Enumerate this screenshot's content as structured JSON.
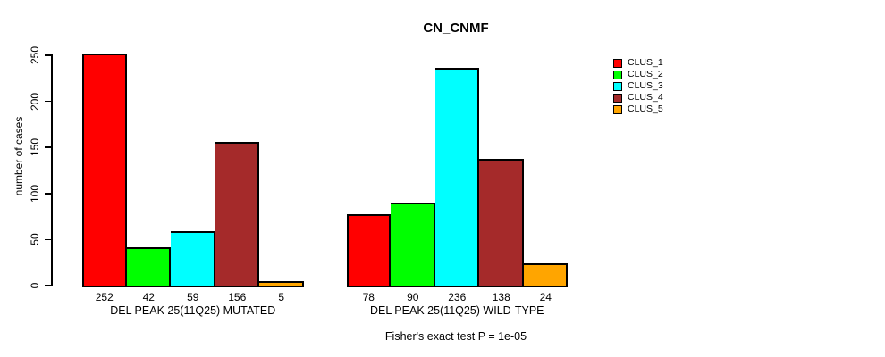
{
  "chart_data": {
    "type": "bar",
    "title": "CN_CNMF",
    "ylabel": "number of cases",
    "xlabel": "",
    "ylim": [
      0,
      250
    ],
    "yticks": [
      0,
      50,
      100,
      150,
      200,
      250
    ],
    "grid": false,
    "legend_position": "right",
    "bar_value_labels_shown": true,
    "categories": [
      "DEL PEAK 25(11Q25) MUTATED",
      "DEL PEAK 25(11Q25) WILD-TYPE"
    ],
    "series": [
      {
        "name": "CLUS_1",
        "color": "#ff0000",
        "values": [
          252,
          78
        ]
      },
      {
        "name": "CLUS_2",
        "color": "#00ff00",
        "values": [
          42,
          90
        ]
      },
      {
        "name": "CLUS_3",
        "color": "#00ffff",
        "values": [
          59,
          236
        ]
      },
      {
        "name": "CLUS_4",
        "color": "#a52a2a",
        "values": [
          156,
          138
        ]
      },
      {
        "name": "CLUS_5",
        "color": "#ffa500",
        "values": [
          5,
          24
        ]
      }
    ],
    "annotation": "Fisher's exact test P = 1e-05",
    "colors": {
      "axis": "#000000",
      "text": "#000000",
      "background": "#ffffff"
    }
  }
}
